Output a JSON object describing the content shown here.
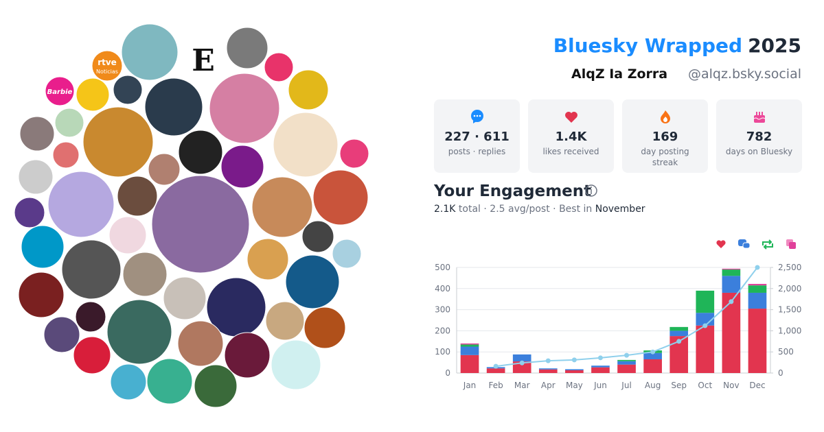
{
  "header": {
    "title": "Bluesky Wrapped",
    "year": "2025",
    "name": "AlqZ Ia Zorra",
    "handle": "@alqz.bsky.social"
  },
  "avatar_texts": {
    "logo_e": "E",
    "rtve": "rtve",
    "noticias": "Noticias",
    "barbie": "Barbie"
  },
  "stats": [
    {
      "value": "227 · 611",
      "label": "posts · replies"
    },
    {
      "value": "1.4K",
      "label": "likes received"
    },
    {
      "value": "169",
      "label": "day posting streak"
    },
    {
      "value": "782",
      "label": "days on Bluesky"
    }
  ],
  "engagement": {
    "title": "Your Engagement",
    "total": "2.1K",
    "total_label": "total",
    "separator": "·",
    "avg": "2.5 avg/post",
    "best_prefix": "Best in",
    "best": "November"
  },
  "chart_data": {
    "type": "bar",
    "categories": [
      "Jan",
      "Feb",
      "Mar",
      "Apr",
      "May",
      "Jun",
      "Jul",
      "Aug",
      "Sep",
      "Oct",
      "Nov",
      "Dec"
    ],
    "series": [
      {
        "color": "#e2354f",
        "values": [
          85,
          22,
          55,
          17,
          13,
          27,
          40,
          65,
          175,
          225,
          380,
          305
        ]
      },
      {
        "color": "#3b7fdc",
        "values": [
          40,
          6,
          33,
          5,
          5,
          8,
          16,
          30,
          25,
          60,
          80,
          75
        ]
      },
      {
        "color": "#1fb558",
        "values": [
          10,
          0,
          0,
          0,
          0,
          0,
          6,
          12,
          18,
          105,
          30,
          35
        ]
      },
      {
        "color": "#e0409a",
        "values": [
          5,
          0,
          0,
          0,
          0,
          0,
          0,
          0,
          0,
          0,
          4,
          7
        ]
      },
      {
        "type": "line",
        "axis": "y2",
        "color": "#8fd0ec",
        "values": [
          null,
          160,
          240,
          290,
          310,
          360,
          420,
          500,
          750,
          1120,
          1690,
          2500
        ]
      }
    ],
    "ylim": [
      0,
      500
    ],
    "yticks": [
      0,
      100,
      200,
      300,
      400,
      500
    ],
    "y2lim": [
      0,
      2500
    ],
    "y2ticks": [
      0,
      500,
      {
        "value": 1000,
        "label": "1,000"
      },
      {
        "value": 1500,
        "label": "1,500"
      },
      {
        "value": 2000,
        "label": "2,000"
      },
      {
        "value": 2500,
        "label": "2,500"
      }
    ],
    "grid": true
  }
}
